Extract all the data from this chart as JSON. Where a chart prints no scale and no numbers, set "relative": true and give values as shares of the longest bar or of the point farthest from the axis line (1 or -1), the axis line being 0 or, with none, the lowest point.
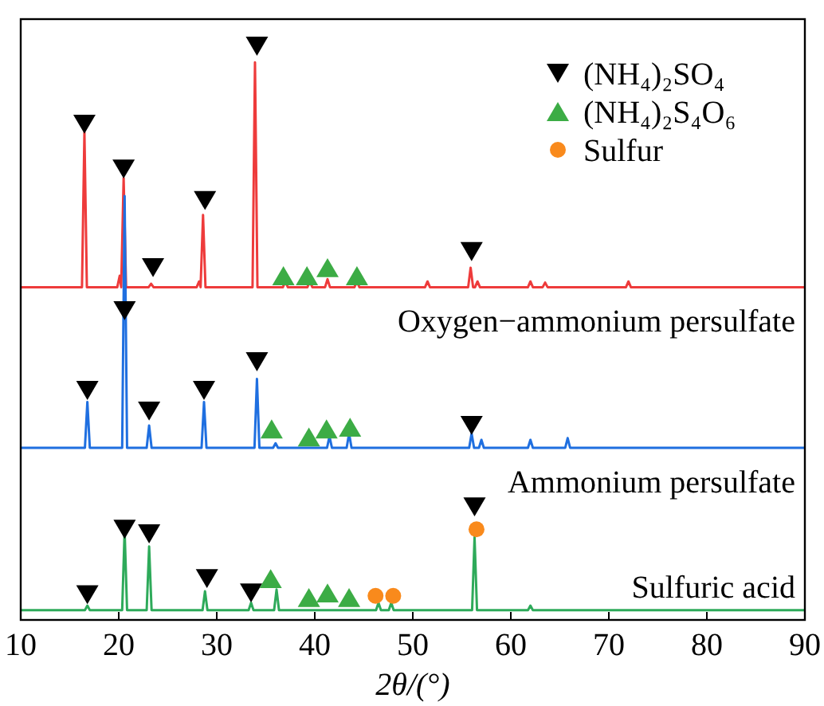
{
  "chart_data": {
    "type": "line",
    "relative": true,
    "xlabel": "2θ/(°)",
    "xlim": [
      10,
      90
    ],
    "xticks": [
      10,
      20,
      30,
      40,
      50,
      60,
      70,
      80,
      90
    ],
    "grid": false,
    "legend": "top right",
    "series": [
      {
        "name": "Oxygen−ammonium persulfate",
        "color": "#ee3b3b",
        "x": [
          10,
          16.25,
          16.5,
          16.75,
          19.85,
          20.1,
          20.25,
          20.5,
          20.75,
          23.05,
          23.3,
          23.55,
          27.95,
          28.2,
          28.35,
          28.6,
          28.85,
          33.65,
          33.9,
          34.15,
          36.75,
          37,
          37.25,
          39.25,
          39.5,
          39.75,
          41.05,
          41.3,
          41.55,
          44.05,
          44.3,
          44.55,
          51.25,
          51.5,
          51.75,
          55.65,
          55.9,
          56.15,
          56.35,
          56.6,
          56.85,
          61.75,
          62,
          62.25,
          63.25,
          63.5,
          63.75,
          71.75,
          72,
          72.25,
          90
        ],
        "values": [
          0.58,
          0.58,
          0.85,
          0.58,
          0.58,
          0.6,
          0.58,
          0.77,
          0.58,
          0.58,
          0.586,
          0.58,
          0.58,
          0.59,
          0.58,
          0.706,
          0.58,
          0.58,
          0.972,
          0.58,
          0.58,
          0.59,
          0.58,
          0.58,
          0.59,
          0.58,
          0.58,
          0.594,
          0.58,
          0.58,
          0.59,
          0.58,
          0.58,
          0.59,
          0.58,
          0.58,
          0.614,
          0.58,
          0.58,
          0.59,
          0.58,
          0.58,
          0.59,
          0.58,
          0.58,
          0.588,
          0.58,
          0.58,
          0.59,
          0.58,
          0.58
        ]
      },
      {
        "name": "Ammonium persulfate",
        "color": "#1f6fe0",
        "x": [
          10,
          16.55,
          16.8,
          17.05,
          20.35,
          20.6,
          20.85,
          22.85,
          23.1,
          23.35,
          28.45,
          28.7,
          28.95,
          33.85,
          34.1,
          34.35,
          35.75,
          36,
          36.25,
          41.25,
          41.5,
          41.75,
          43.25,
          43.5,
          43.75,
          55.75,
          56,
          56.25,
          56.75,
          57,
          57.25,
          61.75,
          62,
          62.25,
          65.55,
          65.8,
          66.05,
          90
        ],
        "values": [
          0.3,
          0.3,
          0.38,
          0.3,
          0.3,
          0.739,
          0.3,
          0.3,
          0.339,
          0.3,
          0.3,
          0.38,
          0.3,
          0.3,
          0.42,
          0.3,
          0.3,
          0.308,
          0.3,
          0.3,
          0.32,
          0.3,
          0.3,
          0.325,
          0.3,
          0.3,
          0.325,
          0.3,
          0.3,
          0.314,
          0.3,
          0.3,
          0.314,
          0.3,
          0.3,
          0.317,
          0.3,
          0.3
        ]
      },
      {
        "name": "Sulfuric acid",
        "color": "#2eaa5a",
        "x": [
          10,
          16.55,
          16.8,
          17.05,
          20.35,
          20.6,
          20.85,
          22.85,
          23.1,
          23.35,
          28.55,
          28.8,
          29.05,
          33.25,
          33.5,
          33.75,
          35.85,
          36.1,
          36.35,
          46.25,
          46.5,
          46.75,
          47.55,
          47.8,
          48.05,
          56.05,
          56.3,
          56.55,
          61.75,
          62,
          62.25,
          90
        ],
        "values": [
          0.017,
          0.017,
          0.025,
          0.017,
          0.017,
          0.156,
          0.017,
          0.017,
          0.128,
          0.017,
          0.017,
          0.05,
          0.017,
          0.017,
          0.03,
          0.017,
          0.017,
          0.053,
          0.017,
          0.017,
          0.03,
          0.017,
          0.017,
          0.03,
          0.017,
          0.017,
          0.144,
          0.017,
          0.017,
          0.025,
          0.017,
          0.017
        ]
      },
      {
        "type": "scatter",
        "name": "(NH₄)₂SO₄",
        "color": "#000000",
        "marker": "triangle-down",
        "x": [
          16.5,
          20.5,
          23.5,
          28.8,
          34.1,
          56.0,
          16.8,
          20.6,
          23.1,
          28.7,
          34.1,
          56.0,
          16.8,
          20.6,
          23.1,
          29.0,
          33.5,
          56.3
        ],
        "values": [
          0.864,
          0.786,
          0.614,
          0.731,
          1.0,
          0.642,
          0.4,
          0.539,
          0.364,
          0.4,
          0.45,
          0.339,
          0.044,
          0.158,
          0.15,
          0.072,
          0.047,
          0.197
        ]
      },
      {
        "type": "scatter",
        "name": "(NH₄)₂S₄O₆",
        "color": "#3cac45",
        "marker": "triangle",
        "x": [
          36.8,
          39.2,
          41.3,
          44.3,
          35.6,
          39.4,
          41.2,
          43.6,
          35.5,
          39.4,
          41.3,
          43.5
        ],
        "values": [
          0.6,
          0.6,
          0.614,
          0.6,
          0.333,
          0.319,
          0.333,
          0.336,
          0.072,
          0.039,
          0.047,
          0.039
        ]
      },
      {
        "type": "scatter",
        "name": "Sulfur",
        "color": "#f98a1c",
        "marker": "circle",
        "x": [
          46.2,
          48.0,
          56.5
        ],
        "values": [
          0.042,
          0.042,
          0.158
        ]
      }
    ]
  }
}
